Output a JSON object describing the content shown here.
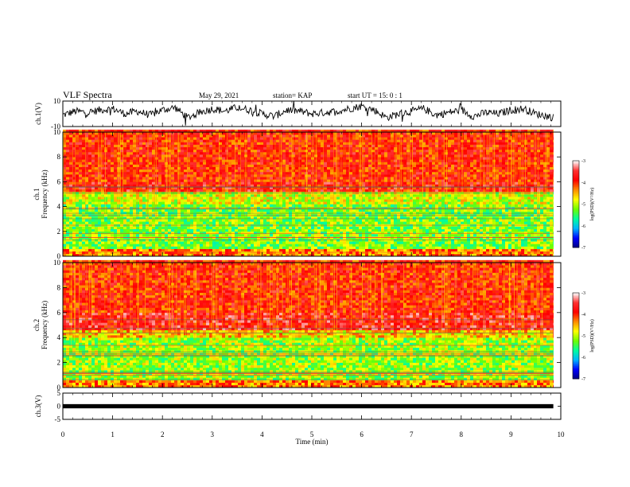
{
  "header": {
    "title": "VLF Spectra",
    "date": "May 29, 2021",
    "station": "station= KAP",
    "start": "start  UT  =   15: 0   : 1"
  },
  "chart_data": [
    {
      "type": "line",
      "panel": "ch1-waveform",
      "ylabel": "ch.1(V)",
      "ylim": [
        -10,
        10
      ],
      "y_ticks": [
        "10",
        "-10"
      ],
      "xlim": [
        0,
        9.85
      ],
      "series": [
        {
          "x": [
            0.0,
            0.25,
            0.5,
            0.75,
            1.0,
            1.25,
            1.5,
            1.75,
            2.0,
            2.25,
            2.5,
            2.75,
            3.0,
            3.25,
            3.5,
            3.75,
            4.0,
            4.25,
            4.5,
            4.75,
            5.0,
            5.25,
            5.5,
            5.75,
            6.0,
            6.25,
            6.5,
            6.75,
            7.0,
            7.25,
            7.5,
            7.75,
            8.0,
            8.25,
            8.5,
            8.75,
            9.0,
            9.25,
            9.5,
            9.75,
            9.85
          ],
          "values": [
            -1,
            2,
            1,
            3,
            4,
            0,
            2,
            -1,
            3,
            5,
            -3,
            1,
            4,
            2,
            5,
            3,
            0,
            -2,
            3,
            2,
            0,
            1,
            2,
            4,
            6,
            3,
            -3,
            0,
            2,
            4,
            -1,
            1,
            3,
            -2,
            1,
            0,
            3,
            4,
            0,
            -2,
            -3
          ]
        }
      ]
    },
    {
      "type": "heatmap",
      "panel": "ch1-spectrogram",
      "ylabel": "ch.1\nFrequency  (kHz)",
      "ylim": [
        0,
        10
      ],
      "xlim": [
        0,
        9.85
      ],
      "y_ticks": [
        0,
        2,
        4,
        6,
        8,
        10
      ],
      "bands": [
        {
          "f_min": 0.0,
          "f_max": 0.5,
          "log_psd": -4.3
        },
        {
          "f_min": 0.5,
          "f_max": 4.2,
          "log_psd": -5.2
        },
        {
          "f_min": 4.2,
          "f_max": 5.2,
          "log_psd": -4.9
        },
        {
          "f_min": 5.2,
          "f_max": 5.9,
          "log_psd": -3.8
        },
        {
          "f_min": 5.9,
          "f_max": 10.0,
          "log_psd": -3.9
        }
      ],
      "colorbar": {
        "label": "log(PSD)(V²/Hz)",
        "range": [
          -7,
          -3
        ],
        "ticks": [
          "-3",
          "-4",
          "-5",
          "-6",
          "-7"
        ]
      }
    },
    {
      "type": "heatmap",
      "panel": "ch2-spectrogram",
      "ylabel": "ch.2\nFrequency  (kHz)",
      "ylim": [
        0,
        10
      ],
      "xlim": [
        0,
        9.85
      ],
      "y_ticks": [
        0,
        2,
        4,
        6,
        8,
        10
      ],
      "bands": [
        {
          "f_min": 0.0,
          "f_max": 0.5,
          "log_psd": -4.3
        },
        {
          "f_min": 0.5,
          "f_max": 3.9,
          "log_psd": -5.1
        },
        {
          "f_min": 3.9,
          "f_max": 4.6,
          "log_psd": -4.6
        },
        {
          "f_min": 4.6,
          "f_max": 6.0,
          "log_psd": -3.7
        },
        {
          "f_min": 6.0,
          "f_max": 10.0,
          "log_psd": -3.9
        }
      ],
      "colorbar": {
        "label": "log(PSD)(V²/Hz)",
        "range": [
          -7,
          -3
        ],
        "ticks": [
          "-3",
          "-4",
          "-5",
          "-6",
          "-7"
        ]
      }
    },
    {
      "type": "line",
      "panel": "ch3-waveform",
      "ylabel": "ch.3(V)",
      "ylim": [
        -5,
        5
      ],
      "y_ticks": [
        "5",
        "0",
        "-5"
      ],
      "xlim": [
        0,
        9.85
      ],
      "series": [
        {
          "x": [
            0,
            9.85
          ],
          "values": [
            0,
            0
          ]
        }
      ]
    }
  ],
  "x_axis": {
    "label": "Time  (min)",
    "range": [
      0,
      10
    ],
    "ticks": [
      "0",
      "1",
      "2",
      "3",
      "4",
      "5",
      "6",
      "7",
      "8",
      "9",
      "10"
    ]
  },
  "colors": {
    "colormap": [
      "#000080",
      "#0000ff",
      "#00b4ff",
      "#00ff9e",
      "#6eff00",
      "#ffff00",
      "#ff8c00",
      "#ff0000",
      "#ff3030",
      "#ffffff"
    ]
  }
}
